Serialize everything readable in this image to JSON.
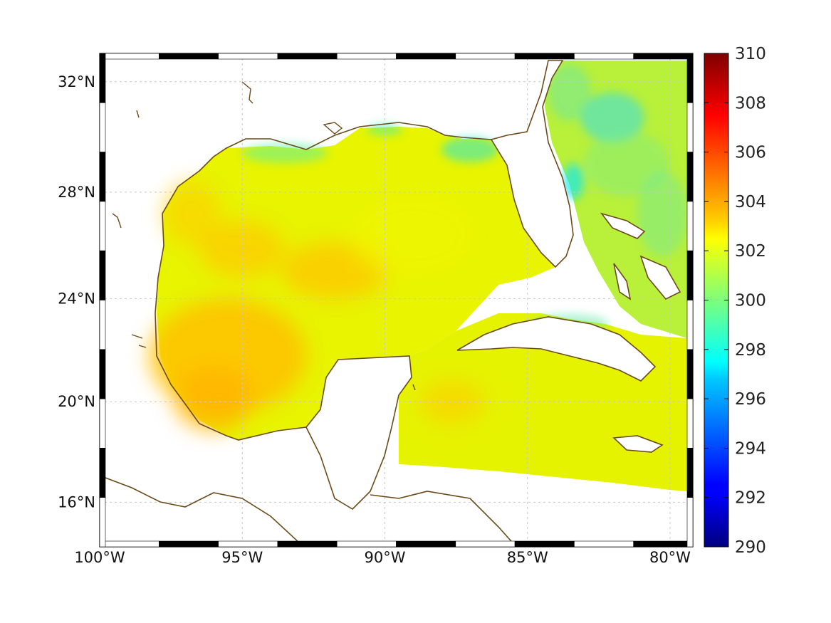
{
  "map": {
    "region": "Gulf of Mexico",
    "projection": "Mercator",
    "lon_range": [
      -100,
      -79.2
    ],
    "lat_range": [
      14.2,
      33.0
    ],
    "x_ticks": [
      {
        "lon": -100,
        "label": "100°W"
      },
      {
        "lon": -95,
        "label": "95°W"
      },
      {
        "lon": -90,
        "label": "90°W"
      },
      {
        "lon": -85,
        "label": "85°W"
      },
      {
        "lon": -80,
        "label": "80°W"
      }
    ],
    "y_ticks": [
      {
        "lat": 16,
        "label": "16°N"
      },
      {
        "lat": 20,
        "label": "20°N"
      },
      {
        "lat": 24,
        "label": "24°N"
      },
      {
        "lat": 28,
        "label": "28°N"
      },
      {
        "lat": 32,
        "label": "32°N"
      }
    ],
    "grid": true,
    "coastline_color": "#6b4a1a"
  },
  "colorbar": {
    "min": 290,
    "max": 310,
    "colormap": "jet",
    "ticks": [
      "290",
      "292",
      "294",
      "296",
      "298",
      "300",
      "302",
      "304",
      "306",
      "308",
      "310"
    ]
  },
  "chart_data": {
    "type": "heatmap",
    "variable_units_hint": "colorbar values 290–310",
    "typical_values": {
      "western_gulf": 304,
      "central_gulf": 303,
      "northern_gulf_shelf": 300,
      "atlantic_east_of_florida": 299,
      "caribbean": 302
    }
  }
}
